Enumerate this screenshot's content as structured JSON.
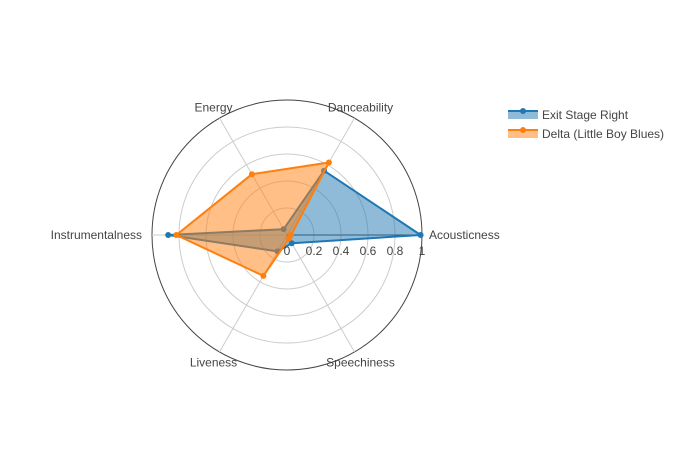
{
  "chart_data": {
    "type": "radar",
    "title": "",
    "axes": [
      "Acousticness",
      "Danceability",
      "Energy",
      "Instrumentalness",
      "Liveness",
      "Speechiness"
    ],
    "radial_range": [
      0,
      1
    ],
    "radial_ticks": [
      "0",
      "0.2",
      "0.4",
      "0.6",
      "0.8",
      "1"
    ],
    "grid": true,
    "legend_position": "top-right",
    "series": [
      {
        "name": "Exit Stage Right",
        "color": "#1f77b4",
        "values": [
          0.99,
          0.55,
          0.05,
          0.88,
          0.14,
          0.07
        ]
      },
      {
        "name": "Delta (Little Boy Blues)",
        "color": "#ff7f0e",
        "values": [
          0.03,
          0.62,
          0.52,
          0.82,
          0.35,
          0.03
        ]
      }
    ]
  }
}
